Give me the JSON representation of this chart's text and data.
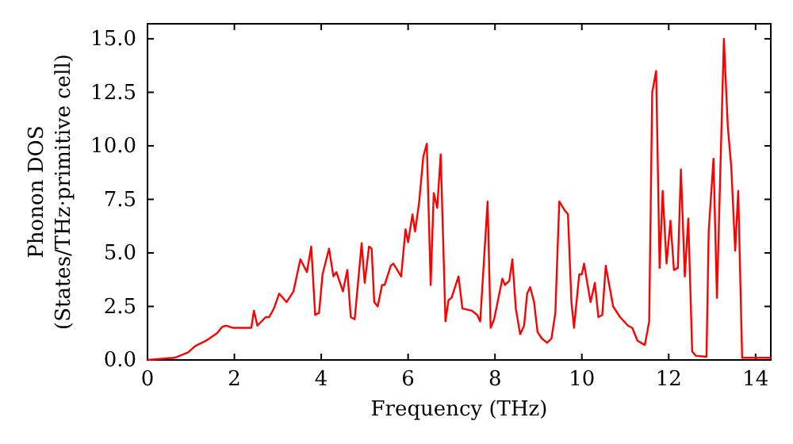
{
  "chart_data": {
    "type": "line",
    "xlabel": "Frequency (THz)",
    "ylabel": "Phonon DOS\n(States/THz·primitive cell)",
    "xlim": [
      0,
      14.35
    ],
    "ylim": [
      0,
      15.7
    ],
    "xticks": [
      0,
      2,
      4,
      6,
      8,
      10,
      12,
      14
    ],
    "yticks": [
      {
        "value": 0,
        "label": "0.0"
      },
      {
        "value": 2.5,
        "label": "2.5"
      },
      {
        "value": 5,
        "label": "5.0"
      },
      {
        "value": 7.5,
        "label": "7.5"
      },
      {
        "value": 10,
        "label": "10.0"
      },
      {
        "value": 12.5,
        "label": "12.5"
      },
      {
        "value": 15,
        "label": "15.0"
      }
    ],
    "marker": "none",
    "line_style": "solid",
    "series": [
      {
        "color": "#ff0000",
        "x": [
          0,
          0.62,
          0.93,
          1.1,
          1.35,
          1.6,
          1.72,
          1.82,
          1.96,
          2.39,
          2.45,
          2.53,
          2.72,
          2.8,
          2.91,
          3.03,
          3.2,
          3.36,
          3.52,
          3.67,
          3.77,
          3.86,
          3.95,
          4.03,
          4.18,
          4.28,
          4.35,
          4.5,
          4.6,
          4.68,
          4.77,
          4.93,
          5.0,
          5.1,
          5.16,
          5.22,
          5.3,
          5.4,
          5.46,
          5.6,
          5.66,
          5.84,
          5.94,
          6.0,
          6.1,
          6.16,
          6.25,
          6.35,
          6.43,
          6.52,
          6.59,
          6.67,
          6.75,
          6.86,
          6.93,
          7.0,
          7.16,
          7.25,
          7.47,
          7.59,
          7.66,
          7.83,
          7.9,
          7.98,
          8.17,
          8.23,
          8.33,
          8.4,
          8.48,
          8.58,
          8.67,
          8.74,
          8.81,
          8.9,
          8.98,
          9.08,
          9.2,
          9.3,
          9.39,
          9.48,
          9.6,
          9.68,
          9.76,
          9.82,
          9.94,
          10.0,
          10.05,
          10.2,
          10.3,
          10.38,
          10.47,
          10.55,
          10.72,
          10.88,
          11.06,
          11.16,
          11.28,
          11.45,
          11.55,
          11.62,
          11.71,
          11.79,
          11.86,
          11.95,
          12.04,
          12.12,
          12.21,
          12.28,
          12.37,
          12.45,
          12.54,
          12.62,
          12.87,
          12.92,
          13.03,
          13.11,
          13.27,
          13.36,
          13.44,
          13.53,
          13.6,
          13.69,
          14.35
        ],
        "values": [
          0,
          0.1,
          0.35,
          0.65,
          0.9,
          1.25,
          1.55,
          1.6,
          1.5,
          1.5,
          2.3,
          1.6,
          2.0,
          2.0,
          2.4,
          3.1,
          2.7,
          3.2,
          4.7,
          4.1,
          5.3,
          2.1,
          2.2,
          4.0,
          5.2,
          3.9,
          4.1,
          3.2,
          4.2,
          2.0,
          1.9,
          5.45,
          3.6,
          5.3,
          5.2,
          2.7,
          2.5,
          3.5,
          3.5,
          4.4,
          4.5,
          3.9,
          6.1,
          5.5,
          6.8,
          6.0,
          7.3,
          9.5,
          10.1,
          3.5,
          7.8,
          7.1,
          9.6,
          1.8,
          2.8,
          2.9,
          3.9,
          2.4,
          2.3,
          2.1,
          1.8,
          7.4,
          1.5,
          1.9,
          3.8,
          3.5,
          3.7,
          4.7,
          2.4,
          1.2,
          1.6,
          3.1,
          3.4,
          2.7,
          1.3,
          1.0,
          0.8,
          1.0,
          2.2,
          7.4,
          7.0,
          6.8,
          2.7,
          1.5,
          4.0,
          4.0,
          4.5,
          2.7,
          3.6,
          2.0,
          2.1,
          4.4,
          2.5,
          2.0,
          1.6,
          1.5,
          0.9,
          0.7,
          1.8,
          12.5,
          13.5,
          4.3,
          7.9,
          4.5,
          6.5,
          4.2,
          4.3,
          8.9,
          3.9,
          6.6,
          0.4,
          0.2,
          0.15,
          6.0,
          9.4,
          2.9,
          15.0,
          10.9,
          9.0,
          5.1,
          7.9,
          0.1,
          0.1
        ]
      }
    ]
  }
}
